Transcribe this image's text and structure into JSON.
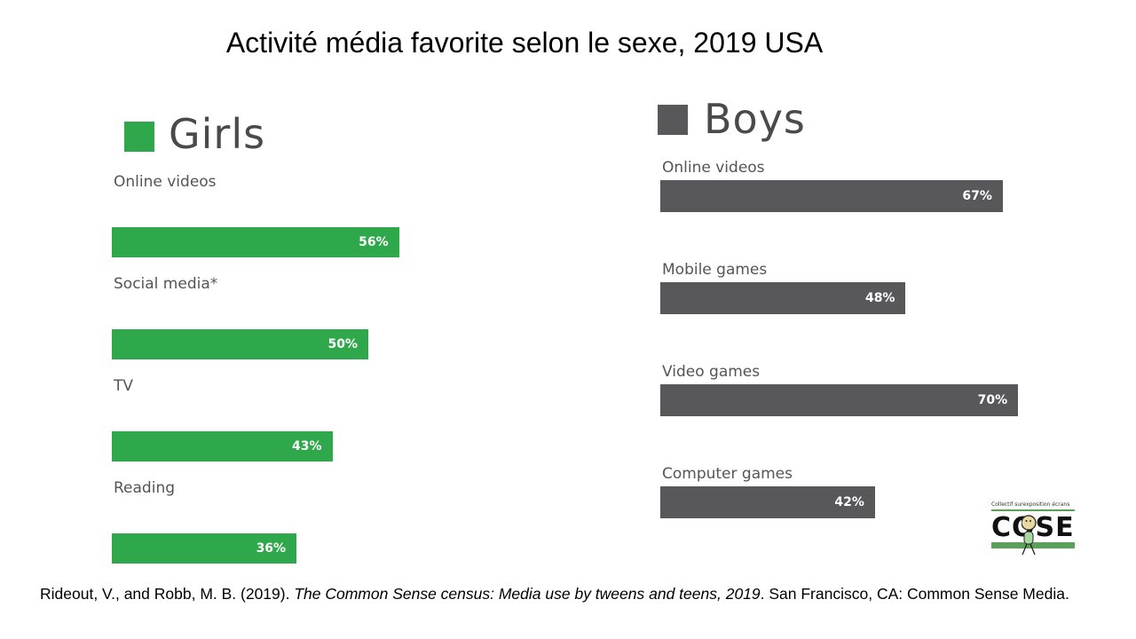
{
  "title": "Activité média favorite selon le sexe, 2019 USA",
  "citation": {
    "authors": "Rideout, V., and Robb, M. B. (2019). ",
    "work": "The Common Sense census: Media use by tweens and teens, 2019",
    "rest": ". San Francisco, CA: Common Sense Media."
  },
  "logo": {
    "tagline": "Collectif surexposition écrans",
    "word": "COSE",
    "icon": "stick-figure-icon"
  },
  "colors": {
    "girls": "#2ea84a",
    "boys": "#58585a"
  },
  "chart_data": [
    {
      "type": "bar",
      "legend": "Girls",
      "categories": [
        "Online videos",
        "Social media*",
        "TV",
        "Reading"
      ],
      "values": [
        56,
        50,
        43,
        36
      ],
      "value_labels": [
        "56%",
        "50%",
        "43%",
        "36%"
      ],
      "unit": "%"
    },
    {
      "type": "bar",
      "legend": "Boys",
      "categories": [
        "Online videos",
        "Mobile games",
        "Video games",
        "Computer games"
      ],
      "values": [
        67,
        48,
        70,
        42
      ],
      "value_labels": [
        "67%",
        "48%",
        "70%",
        "42%"
      ],
      "unit": "%"
    }
  ]
}
